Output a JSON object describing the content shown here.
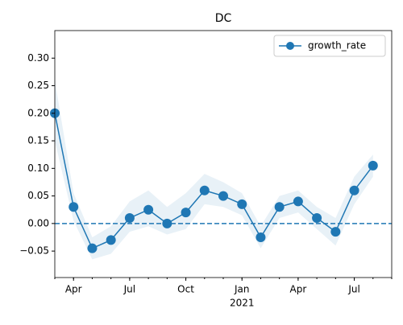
{
  "chart_data": {
    "type": "line",
    "title": "DC",
    "x": [
      "2020-03",
      "2020-04",
      "2020-05",
      "2020-06",
      "2020-07",
      "2020-08",
      "2020-09",
      "2020-10",
      "2020-11",
      "2020-12",
      "2021-01",
      "2021-02",
      "2021-03",
      "2021-04",
      "2021-05",
      "2021-06",
      "2021-07",
      "2021-08"
    ],
    "series": [
      {
        "name": "growth_rate",
        "color": "#1f77b4",
        "values": [
          0.2,
          0.03,
          -0.045,
          -0.03,
          0.01,
          0.025,
          0.0,
          0.02,
          0.06,
          0.05,
          0.035,
          -0.025,
          0.03,
          0.04,
          0.01,
          -0.015,
          0.06,
          0.105
        ]
      }
    ],
    "band": {
      "lower": [
        0.15,
        0.005,
        -0.065,
        -0.055,
        -0.015,
        -0.005,
        -0.02,
        -0.01,
        0.035,
        0.03,
        0.015,
        -0.045,
        0.01,
        0.02,
        -0.01,
        -0.04,
        0.035,
        0.085
      ],
      "upper": [
        0.26,
        0.055,
        -0.025,
        -0.005,
        0.04,
        0.06,
        0.03,
        0.055,
        0.09,
        0.075,
        0.055,
        -0.005,
        0.05,
        0.06,
        0.03,
        0.01,
        0.085,
        0.125
      ]
    },
    "hline": 0,
    "xlim": [
      "2020-03",
      "2021-09"
    ],
    "xticks": [
      {
        "value": "2020-04",
        "label": "Apr"
      },
      {
        "value": "2020-07",
        "label": "Jul"
      },
      {
        "value": "2020-10",
        "label": "Oct"
      },
      {
        "value": "2021-01",
        "label": "Jan"
      },
      {
        "value": "2021-04",
        "label": "Apr"
      },
      {
        "value": "2021-07",
        "label": "Jul"
      }
    ],
    "year_label": {
      "value": "2021-01",
      "label": "2021"
    },
    "ylim": [
      -0.098,
      0.35
    ],
    "yticks": [
      {
        "value": -0.05,
        "label": "−0.05"
      },
      {
        "value": 0,
        "label": "0.00"
      },
      {
        "value": 0.05,
        "label": "0.05"
      },
      {
        "value": 0.1,
        "label": "0.10"
      },
      {
        "value": 0.15,
        "label": "0.15"
      },
      {
        "value": 0.2,
        "label": "0.20"
      },
      {
        "value": 0.25,
        "label": "0.25"
      },
      {
        "value": 0.3,
        "label": "0.30"
      }
    ],
    "legend": "upper right"
  }
}
